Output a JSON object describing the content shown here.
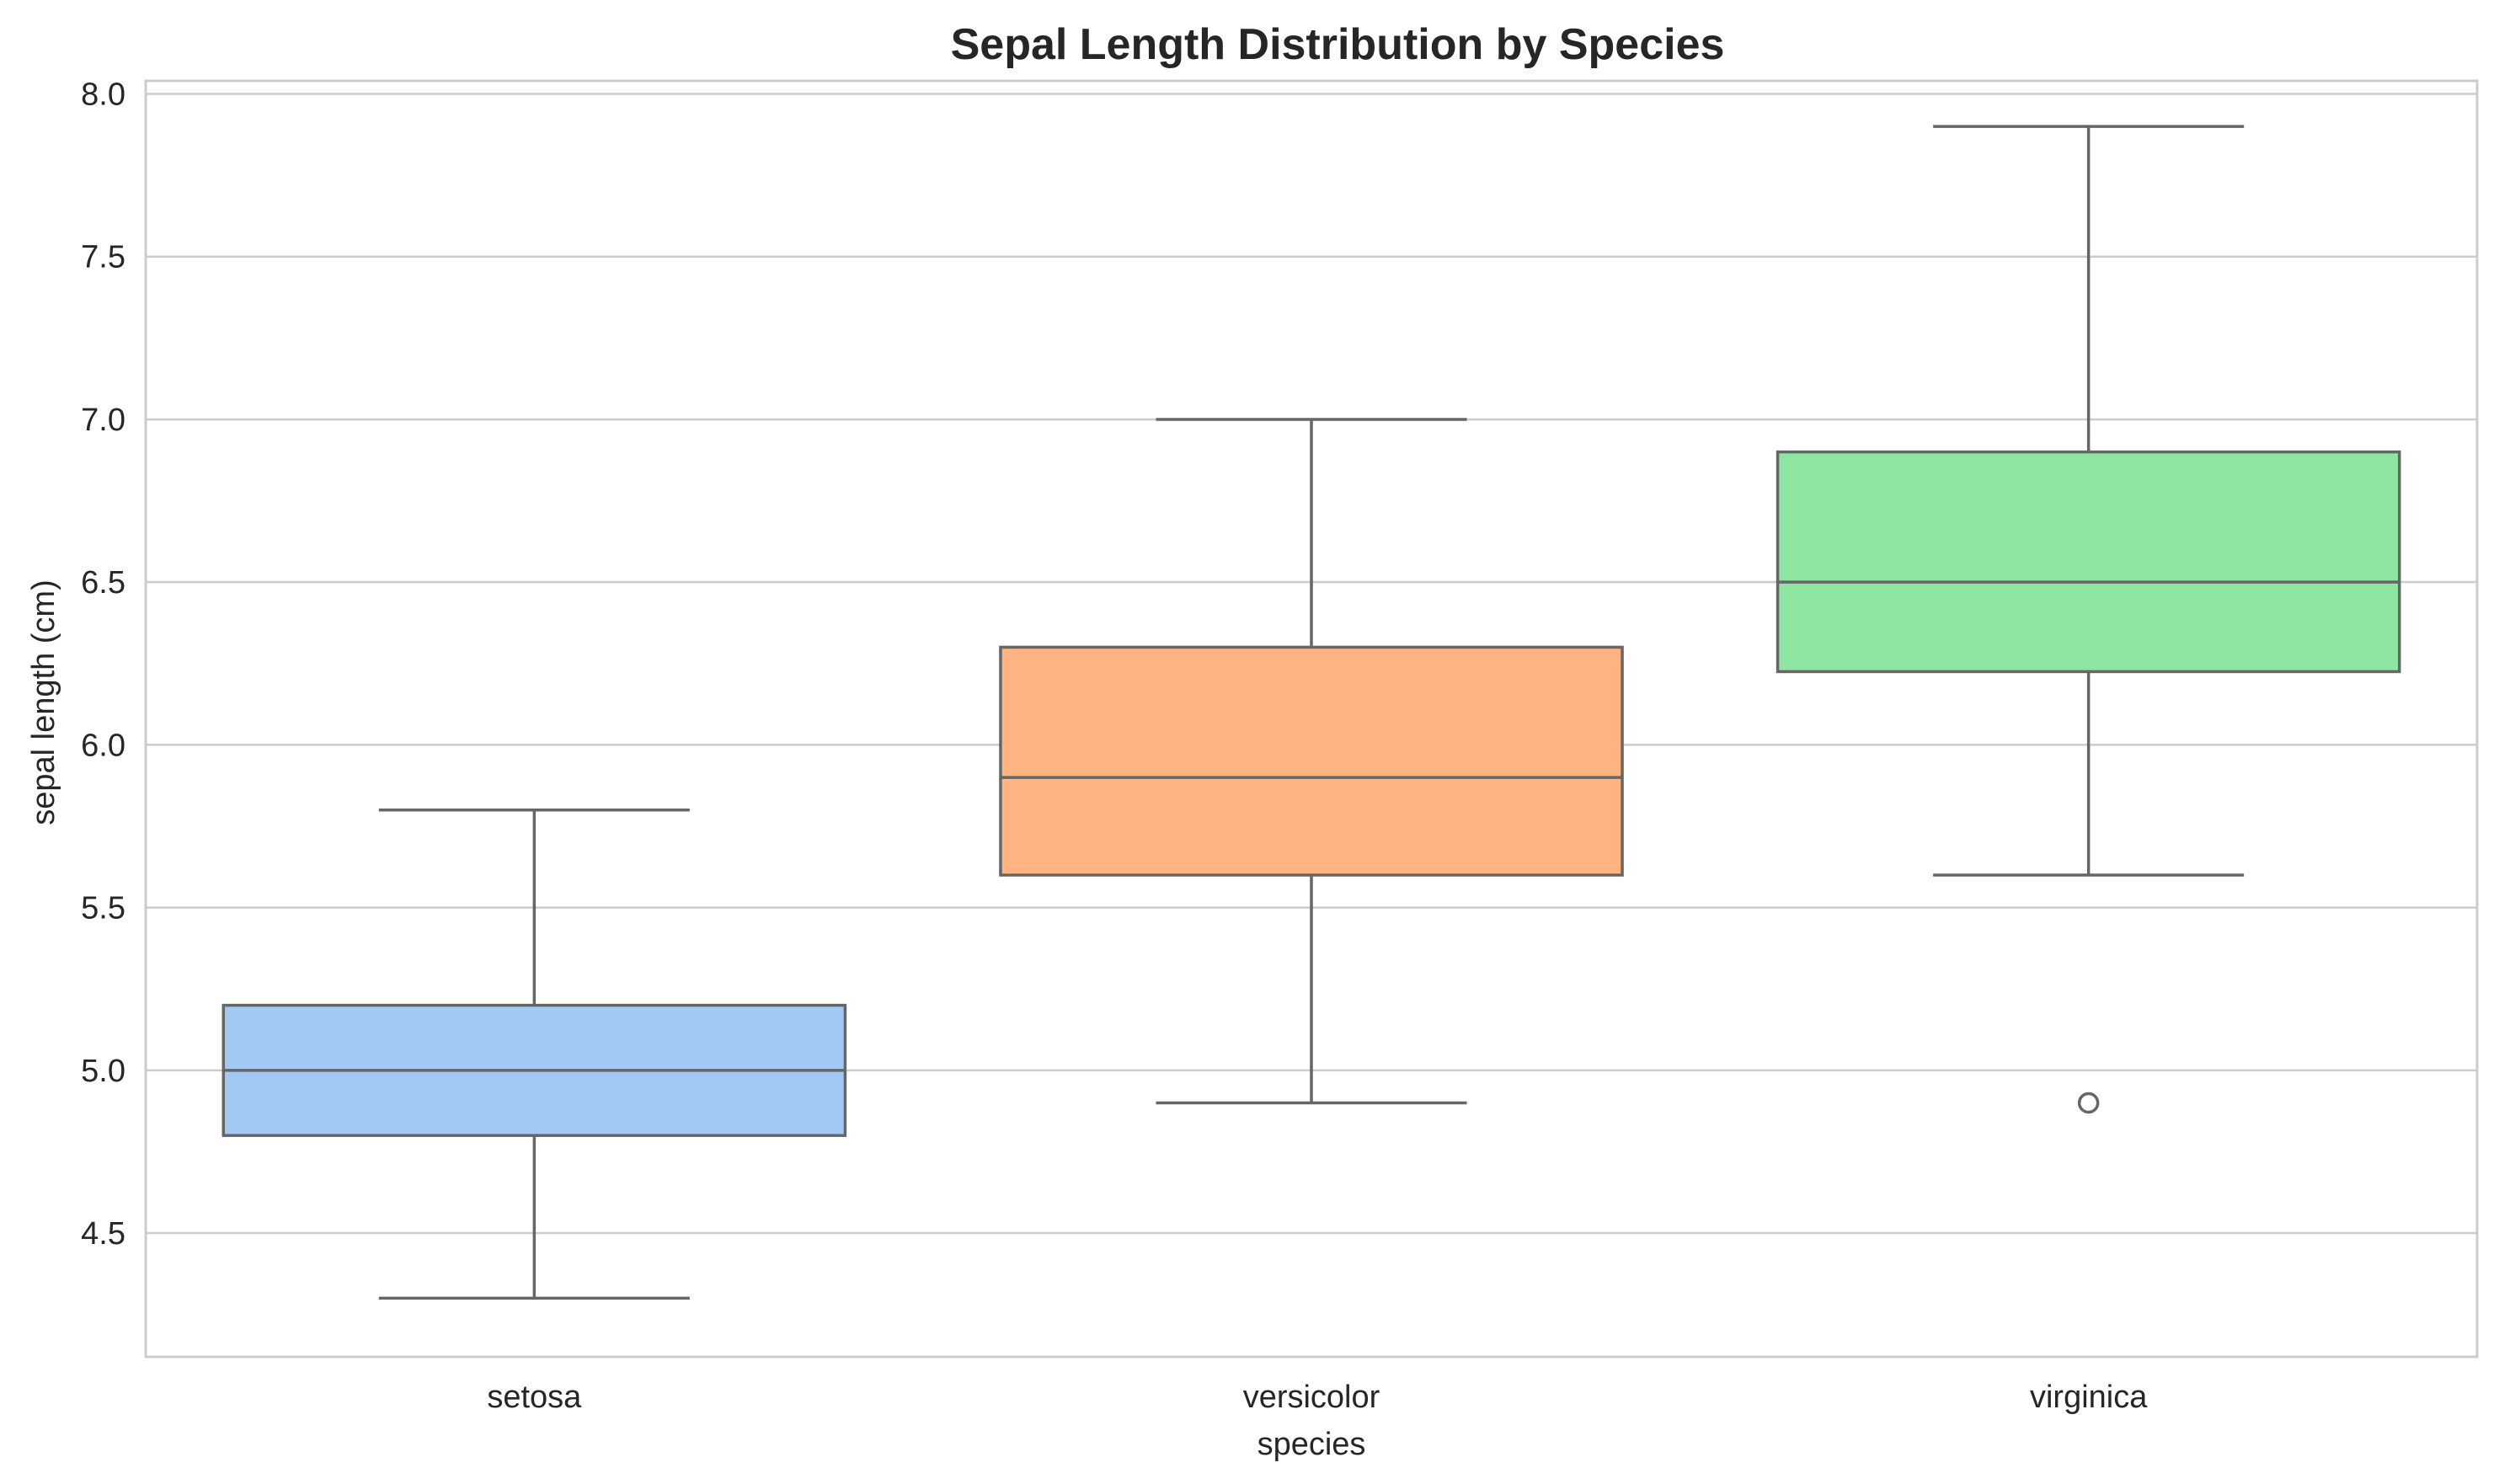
{
  "chart_data": {
    "type": "box",
    "title": "Sepal Length Distribution by Species",
    "xlabel": "species",
    "ylabel": "sepal length (cm)",
    "ylim": [
      4.12,
      8.04
    ],
    "yticks": [
      "4.5",
      "5.0",
      "5.5",
      "6.0",
      "6.5",
      "7.0",
      "7.5",
      "8.0"
    ],
    "grid": true,
    "categories": [
      "setosa",
      "versicolor",
      "virginica"
    ],
    "boxes": [
      {
        "category": "setosa",
        "whisker_low": 4.3,
        "q1": 4.8,
        "median": 5.0,
        "q3": 5.2,
        "whisker_high": 5.8,
        "outliers": [],
        "color": "#a1c9f4"
      },
      {
        "category": "versicolor",
        "whisker_low": 4.9,
        "q1": 5.6,
        "median": 5.9,
        "q3": 6.3,
        "whisker_high": 7.0,
        "outliers": [],
        "color": "#ffb482"
      },
      {
        "category": "virginica",
        "whisker_low": 5.6,
        "q1": 6.225,
        "median": 6.5,
        "q3": 6.9,
        "whisker_high": 7.9,
        "outliers": [
          4.9
        ],
        "color": "#8de5a1"
      }
    ],
    "colors": {
      "line": "#666666",
      "grid": "#cccccc",
      "axes_edge": "#cccccc",
      "text": "#262626"
    }
  }
}
